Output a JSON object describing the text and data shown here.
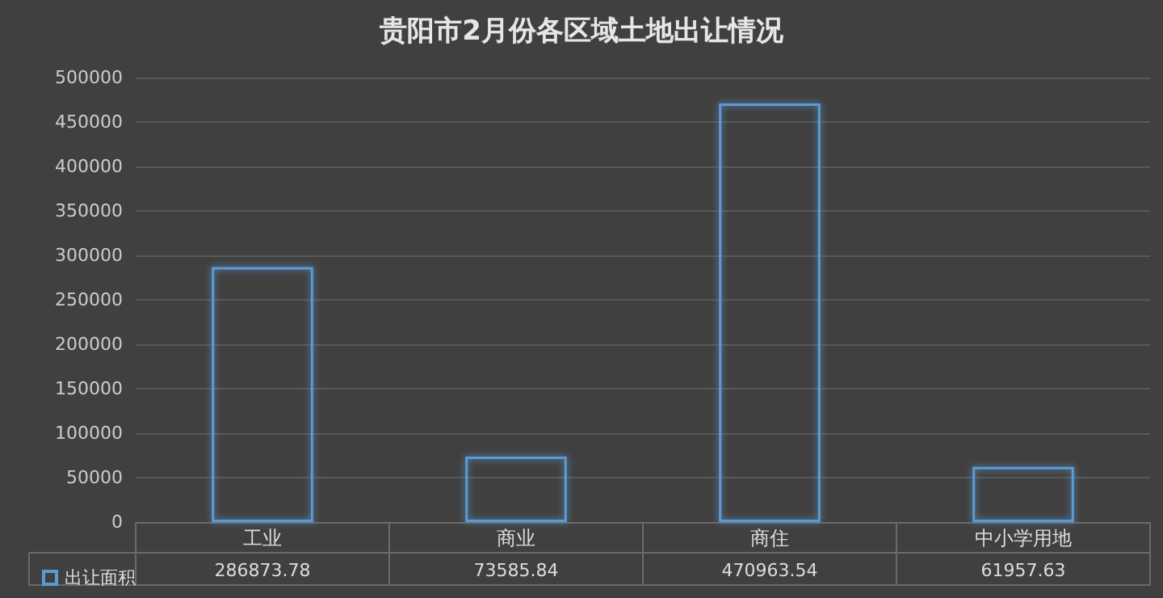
{
  "chart_data": {
    "type": "bar",
    "title": "贵阳市2月份各区域土地出让情况",
    "categories": [
      "工业",
      "商业",
      "商住",
      "中小学用地"
    ],
    "series": [
      {
        "name": "出让面积",
        "color": "#5b9bd5",
        "values": [
          286873.78,
          73585.84,
          470963.54,
          61957.63
        ]
      }
    ],
    "ylim": [
      0,
      500000
    ],
    "yticks": [
      0,
      50000,
      100000,
      150000,
      200000,
      250000,
      300000,
      350000,
      400000,
      450000,
      500000
    ],
    "grid": "y",
    "legend": "bottom left",
    "data_labels": true
  }
}
